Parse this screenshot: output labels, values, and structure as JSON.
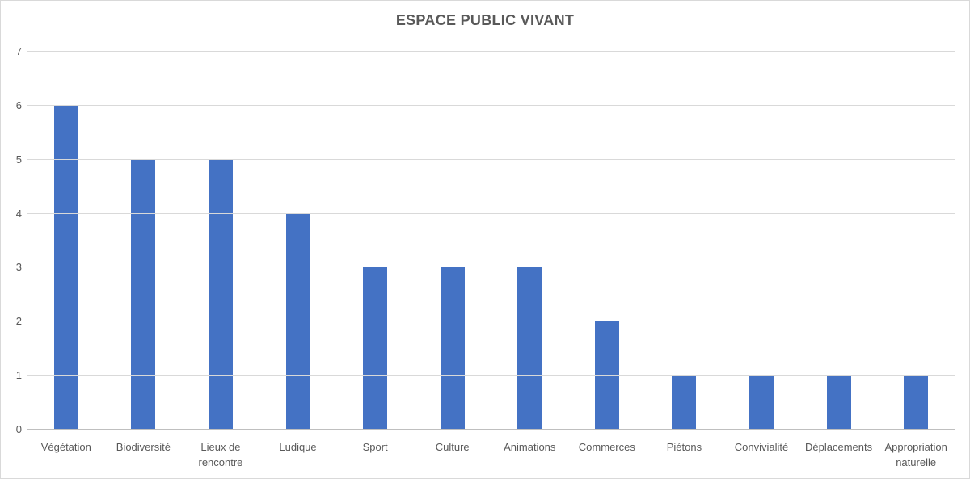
{
  "title": "ESPACE PUBLIC VIVANT",
  "colors": {
    "bar": "#4472C4",
    "gridline": "#D9D9D9",
    "axis_line": "#BFBFBF",
    "text": "#595959",
    "frame_border": "#D9D9D9",
    "background": "#FFFFFF"
  },
  "y_axis": {
    "min": 0,
    "max": 7,
    "ticks": [
      0,
      1,
      2,
      3,
      4,
      5,
      6,
      7
    ]
  },
  "chart_data": {
    "type": "bar",
    "title": "ESPACE PUBLIC VIVANT",
    "categories": [
      "Végétation",
      "Biodiversité",
      "Lieux de rencontre",
      "Ludique",
      "Sport",
      "Culture",
      "Animations",
      "Commerces",
      "Piétons",
      "Convivialité",
      "Déplacements",
      "Appropriation naturelle"
    ],
    "values": [
      6,
      5,
      5,
      4,
      3,
      3,
      3,
      2,
      1,
      1,
      1,
      1
    ],
    "xlabel": "",
    "ylabel": "",
    "ylim": [
      0,
      7
    ],
    "grid": true,
    "legend": false
  }
}
